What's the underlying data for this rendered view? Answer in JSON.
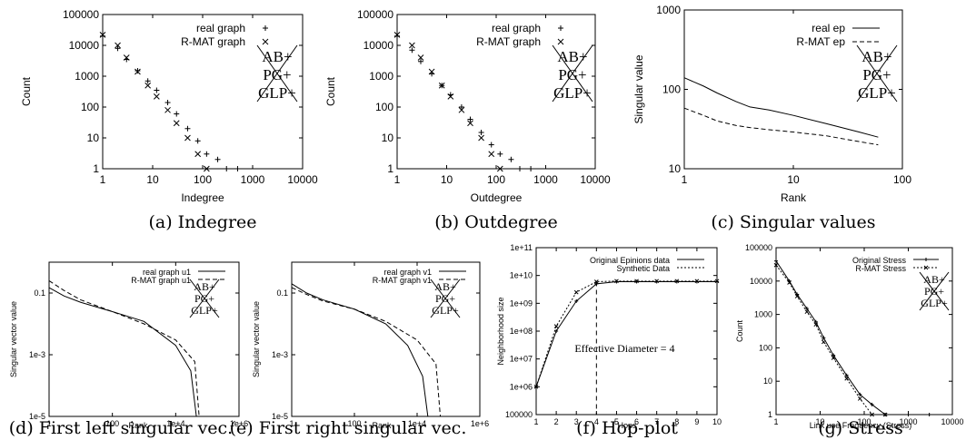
{
  "stamp_lines": [
    "AB+",
    "PG+",
    "GLP+"
  ],
  "chart_data": [
    {
      "id": "a",
      "type": "scatter",
      "caption": "(a) Indegree",
      "xlabel": "Indegree",
      "ylabel": "Count",
      "xscale": "log",
      "yscale": "log",
      "xlim": [
        1,
        10000
      ],
      "ylim": [
        1,
        100000
      ],
      "xticks": [
        "1",
        "10",
        "100",
        "1000",
        "10000"
      ],
      "yticks": [
        "1",
        "10",
        "100",
        "1000",
        "10000",
        "100000"
      ],
      "legend_position": "top-right",
      "series": [
        {
          "name": "real graph",
          "marker": "+",
          "x": [
            1,
            2,
            3,
            5,
            8,
            12,
            20,
            30,
            50,
            80,
            120,
            200,
            300,
            500
          ],
          "y": [
            20000,
            8000,
            3500,
            1500,
            700,
            350,
            140,
            60,
            20,
            8,
            3,
            2,
            1,
            1
          ]
        },
        {
          "name": "R-MAT graph",
          "marker": "x",
          "x": [
            1,
            2,
            3,
            5,
            8,
            12,
            20,
            30,
            50,
            80,
            120
          ],
          "y": [
            22000,
            10000,
            4000,
            1400,
            500,
            220,
            80,
            30,
            10,
            3,
            1
          ]
        }
      ]
    },
    {
      "id": "b",
      "type": "scatter",
      "caption": "(b) Outdegree",
      "xlabel": "Outdegree",
      "ylabel": "Count",
      "xscale": "log",
      "yscale": "log",
      "xlim": [
        1,
        10000
      ],
      "ylim": [
        1,
        100000
      ],
      "xticks": [
        "1",
        "10",
        "100",
        "1000",
        "10000"
      ],
      "yticks": [
        "1",
        "10",
        "100",
        "1000",
        "10000",
        "100000"
      ],
      "legend_position": "top-right",
      "series": [
        {
          "name": "real graph",
          "marker": "+",
          "x": [
            1,
            2,
            3,
            5,
            8,
            12,
            20,
            30,
            50,
            80,
            120,
            200,
            300,
            500
          ],
          "y": [
            20000,
            7000,
            3000,
            1200,
            500,
            250,
            100,
            40,
            15,
            6,
            3,
            2,
            1,
            1
          ]
        },
        {
          "name": "R-MAT graph",
          "marker": "x",
          "x": [
            1,
            2,
            3,
            5,
            8,
            12,
            20,
            30,
            50,
            80,
            120
          ],
          "y": [
            22000,
            10000,
            4000,
            1400,
            500,
            220,
            80,
            30,
            10,
            3,
            1
          ]
        }
      ]
    },
    {
      "id": "c",
      "type": "line",
      "caption": "(c) Singular values",
      "xlabel": "Rank",
      "ylabel": "Singular value",
      "xscale": "log",
      "yscale": "log",
      "xlim": [
        1,
        100
      ],
      "ylim": [
        10,
        1000
      ],
      "xticks": [
        "1",
        "10",
        "100"
      ],
      "yticks": [
        "10",
        "100",
        "1000"
      ],
      "legend_position": "top-right",
      "series": [
        {
          "name": "real ep",
          "style": "solid",
          "x": [
            1,
            1.5,
            2,
            3,
            4,
            6,
            10,
            20,
            40,
            60
          ],
          "y": [
            140,
            110,
            90,
            70,
            60,
            55,
            47,
            37,
            29,
            25
          ]
        },
        {
          "name": "R-MAT ep",
          "style": "dashed",
          "x": [
            1,
            1.5,
            2,
            3,
            4,
            6,
            10,
            20,
            40,
            60
          ],
          "y": [
            58,
            47,
            40,
            35,
            33,
            31,
            29,
            26,
            22,
            20
          ]
        }
      ]
    },
    {
      "id": "d",
      "type": "line",
      "caption": "(d) First left singular vec.",
      "xlabel": "Rank",
      "ylabel": "Singular vector value",
      "xscale": "log",
      "yscale": "log",
      "xlim": [
        1,
        1000000
      ],
      "ylim": [
        1e-05,
        1
      ],
      "xticks": [
        "1",
        "100",
        "1e+4",
        "1e+6"
      ],
      "yticks": [
        "1e-5",
        "1e-3",
        "0.1"
      ],
      "legend_position": "top-right",
      "series": [
        {
          "name": "real graph u1",
          "style": "solid",
          "x": [
            1,
            3,
            10,
            100,
            1000,
            10000,
            30000,
            45000
          ],
          "y": [
            0.15,
            0.08,
            0.05,
            0.025,
            0.012,
            0.002,
            0.0003,
            1e-05
          ]
        },
        {
          "name": "R-MAT graph u1",
          "style": "dashed",
          "x": [
            1,
            3,
            10,
            100,
            1000,
            10000,
            40000,
            55000
          ],
          "y": [
            0.25,
            0.12,
            0.06,
            0.025,
            0.01,
            0.003,
            0.0006,
            1e-05
          ]
        }
      ]
    },
    {
      "id": "e",
      "type": "line",
      "caption": "(e) First right singular vec.",
      "xlabel": "Rank",
      "ylabel": "Singular vector value",
      "xscale": "log",
      "yscale": "log",
      "xlim": [
        1,
        1000000
      ],
      "ylim": [
        1e-05,
        1
      ],
      "xticks": [
        "1",
        "100",
        "1e+4",
        "1e+6"
      ],
      "yticks": [
        "1e-5",
        "1e-3",
        "0.1"
      ],
      "legend_position": "top-right",
      "series": [
        {
          "name": "real graph v1",
          "style": "solid",
          "x": [
            1,
            3,
            10,
            100,
            1000,
            5000,
            15000,
            22000
          ],
          "y": [
            0.2,
            0.1,
            0.06,
            0.03,
            0.01,
            0.002,
            0.0002,
            1e-05
          ]
        },
        {
          "name": "R-MAT graph v1",
          "style": "dashed",
          "x": [
            1,
            3,
            10,
            100,
            1000,
            10000,
            40000,
            55000
          ],
          "y": [
            0.15,
            0.09,
            0.055,
            0.03,
            0.012,
            0.003,
            0.0005,
            1e-05
          ]
        }
      ]
    },
    {
      "id": "f",
      "type": "line",
      "caption": "(f) Hop-plot",
      "xlabel": "Hops",
      "ylabel": "Neighborhood size",
      "xscale": "linear",
      "yscale": "log",
      "xlim": [
        1,
        10
      ],
      "ylim": [
        100000,
        100000000000
      ],
      "xticks": [
        "1",
        "2",
        "3",
        "4",
        "5",
        "6",
        "7",
        "8",
        "9",
        "10"
      ],
      "yticks": [
        "100000",
        "1e+06",
        "1e+07",
        "1e+08",
        "1e+09",
        "1e+10",
        "1e+11"
      ],
      "annotation": "Effective Diameter = 4",
      "effective_diameter_x": 4,
      "legend_position": "top-right",
      "series": [
        {
          "name": "Original Epinions data",
          "style": "solid",
          "x": [
            1,
            2,
            3,
            4,
            5,
            6,
            7,
            8,
            9,
            10
          ],
          "y": [
            1000000,
            100000000,
            1200000000,
            5000000000,
            6000000000,
            6000000000,
            6000000000,
            6000000000,
            6000000000,
            6000000000
          ]
        },
        {
          "name": "Synthetic Data",
          "style": "dotted",
          "x": [
            1,
            2,
            3,
            4,
            5,
            6,
            7,
            8,
            9,
            10
          ],
          "y": [
            1000000,
            150000000,
            2500000000,
            6000000000,
            6300000000,
            6300000000,
            6300000000,
            6300000000,
            6300000000,
            6300000000
          ]
        }
      ]
    },
    {
      "id": "g",
      "type": "scatter",
      "caption": "(g) Stress",
      "xlabel": "Link use Frequency (Stress)",
      "ylabel": "Count",
      "xscale": "log",
      "yscale": "log",
      "xlim": [
        1,
        10000
      ],
      "ylim": [
        1,
        100000
      ],
      "xticks": [
        "1",
        "10",
        "100",
        "1000",
        "10000"
      ],
      "yticks": [
        "1",
        "10",
        "100",
        "1000",
        "10000",
        "100000"
      ],
      "legend_position": "top-right",
      "series": [
        {
          "name": "Original Stress",
          "style": "solid",
          "x": [
            1,
            2,
            3,
            5,
            8,
            12,
            20,
            40,
            80,
            150,
            300,
            1000,
            3000
          ],
          "y": [
            40000,
            10000,
            4000,
            1500,
            600,
            200,
            60,
            15,
            4,
            2,
            1,
            1,
            1
          ]
        },
        {
          "name": "R-MAT Stress",
          "style": "dotted",
          "x": [
            1,
            2,
            3,
            5,
            8,
            12,
            20,
            40,
            80,
            150,
            300
          ],
          "y": [
            30000,
            9000,
            3500,
            1200,
            500,
            150,
            50,
            12,
            3,
            1,
            1
          ]
        }
      ]
    }
  ]
}
